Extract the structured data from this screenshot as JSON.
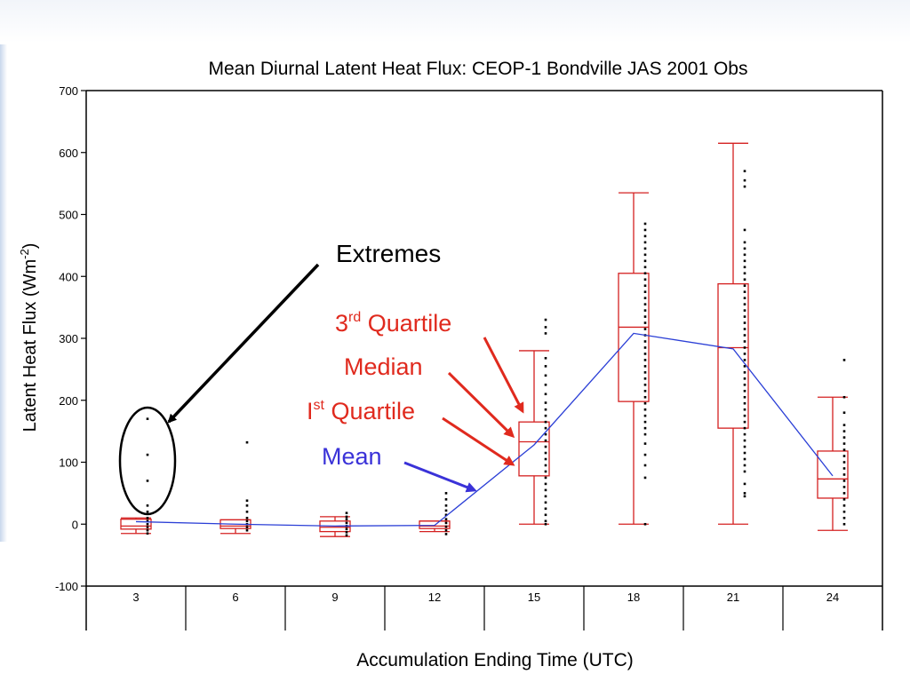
{
  "chart_data": {
    "type": "box",
    "title": "Mean Diurnal Latent Heat Flux: CEOP-1 Bondville JAS 2001 Obs",
    "xlabel": "Accumulation Ending Time (UTC)",
    "ylabel_main": "Latent Heat Flux (Wm",
    "ylabel_sup": "-2",
    "ylabel_end": ")",
    "ylim": [
      -100,
      700
    ],
    "yticks": [
      "-100",
      "0",
      "100",
      "200",
      "300",
      "400",
      "500",
      "600",
      "700"
    ],
    "categories": [
      "3",
      "6",
      "9",
      "12",
      "15",
      "18",
      "21",
      "24"
    ],
    "boxes": [
      {
        "min": -15,
        "q1": -8,
        "median": -3,
        "q3": 8,
        "max": 10
      },
      {
        "min": -15,
        "q1": -7,
        "median": -3,
        "q3": 7,
        "max": 7
      },
      {
        "min": -20,
        "q1": -12,
        "median": -5,
        "q3": 5,
        "max": 12
      },
      {
        "min": -12,
        "q1": -7,
        "median": -3,
        "q3": 5,
        "max": 5
      },
      {
        "min": 0,
        "q1": 78,
        "median": 133,
        "q3": 165,
        "max": 280
      },
      {
        "min": 0,
        "q1": 198,
        "median": 318,
        "q3": 405,
        "max": 535
      },
      {
        "min": 0,
        "q1": 155,
        "median": 285,
        "q3": 388,
        "max": 615
      },
      {
        "min": -10,
        "q1": 42,
        "median": 73,
        "q3": 118,
        "max": 205
      }
    ],
    "mean": [
      4,
      0,
      -3,
      -2,
      128,
      308,
      283,
      78
    ],
    "points": [
      [
        170,
        112,
        70,
        30,
        20,
        10,
        5,
        0,
        -5,
        -10,
        -15
      ],
      [
        132,
        38,
        30,
        20,
        10,
        5,
        0,
        -5,
        -10
      ],
      [
        18,
        12,
        8,
        2,
        -3,
        -8,
        -13,
        -18
      ],
      [
        50,
        40,
        30,
        22,
        15,
        8,
        2,
        -4,
        -10,
        -16
      ],
      [
        330,
        318,
        308,
        268,
        255,
        240,
        225,
        210,
        196,
        185,
        175,
        165,
        155,
        145,
        135,
        125,
        115,
        105,
        95,
        85,
        75,
        65,
        55,
        45,
        35,
        25,
        15,
        5,
        0
      ],
      [
        485,
        475,
        465,
        455,
        445,
        435,
        425,
        415,
        405,
        395,
        385,
        375,
        365,
        355,
        345,
        335,
        325,
        315,
        305,
        295,
        285,
        275,
        265,
        255,
        245,
        235,
        225,
        215,
        205,
        195,
        185,
        175,
        165,
        155,
        145,
        130,
        112,
        95,
        75,
        0
      ],
      [
        570,
        555,
        545,
        475,
        455,
        445,
        435,
        425,
        415,
        405,
        395,
        385,
        375,
        365,
        355,
        345,
        335,
        325,
        315,
        305,
        295,
        285,
        275,
        265,
        255,
        245,
        235,
        225,
        215,
        205,
        195,
        185,
        175,
        165,
        155,
        145,
        135,
        125,
        115,
        105,
        95,
        85,
        65,
        50,
        45
      ],
      [
        265,
        205,
        180,
        160,
        150,
        140,
        130,
        120,
        110,
        100,
        90,
        80,
        70,
        60,
        50,
        40,
        30,
        20,
        10,
        0
      ]
    ],
    "colors": {
      "box": "#d42020",
      "mean_line": "#2b3fd6",
      "points": "#000000",
      "axis": "#000000"
    }
  },
  "annotations": {
    "extremes": "Extremes",
    "q3_main": "3",
    "q3_sup": "rd",
    "q3_end": " Quartile",
    "median": "Median",
    "q1_main": "I",
    "q1_sup": "st",
    "q1_end": " Quartile",
    "mean": "Mean"
  },
  "annotation_colors": {
    "extremes": "#000000",
    "quartiles": "#e02a1e",
    "mean": "#3a32d8"
  }
}
